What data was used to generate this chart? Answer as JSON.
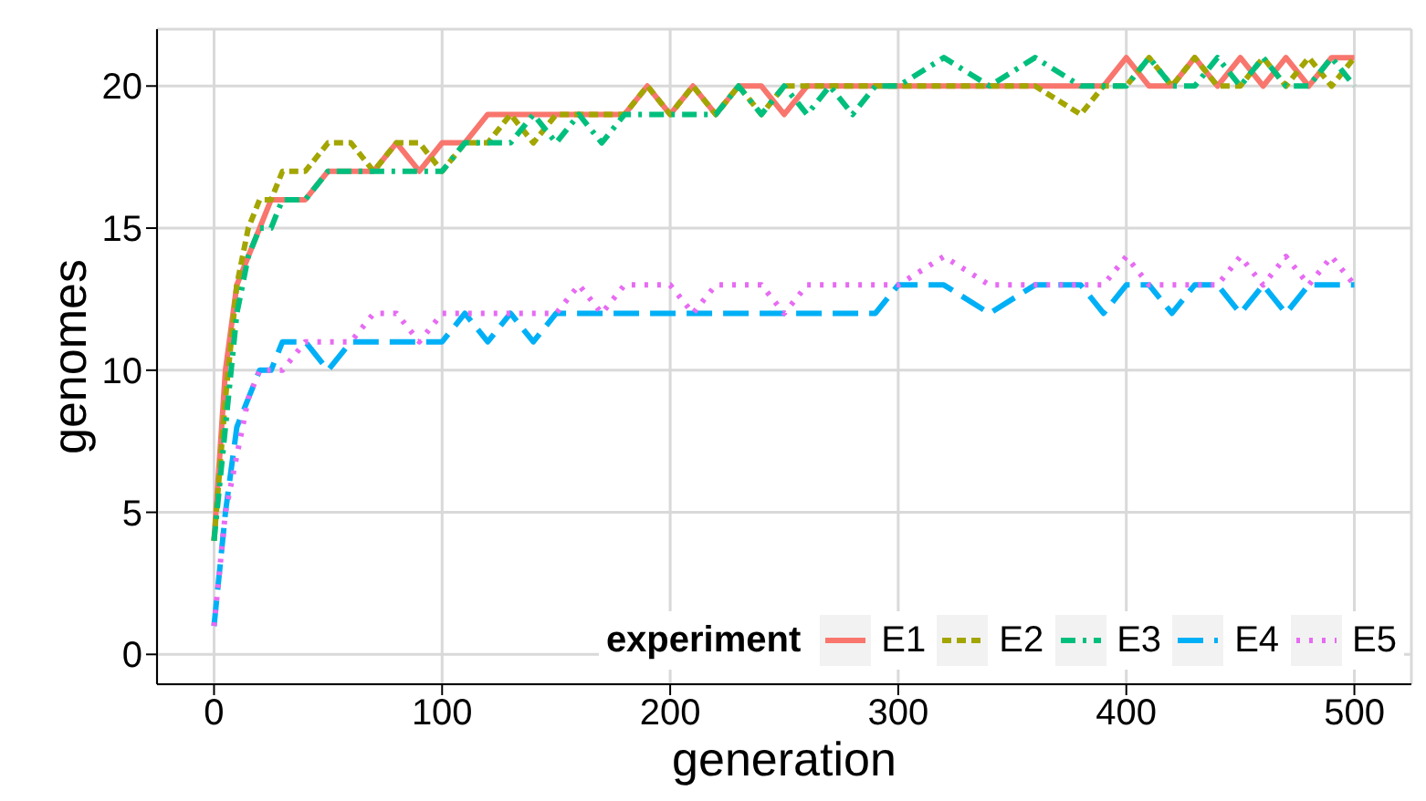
{
  "chart_data": {
    "type": "line",
    "xlabel": "generation",
    "ylabel": "genomes",
    "legend_title": "experiment",
    "legend": "bottom right",
    "grid": true,
    "marker": "none",
    "xlim": [
      -25,
      525
    ],
    "xticks": [
      0,
      100,
      200,
      300,
      400,
      500
    ],
    "ylim": [
      -1.05,
      22
    ],
    "yticks": [
      0,
      5,
      10,
      15,
      20
    ],
    "x": [
      0,
      5,
      10,
      15,
      20,
      25,
      30,
      40,
      50,
      60,
      70,
      80,
      90,
      100,
      110,
      120,
      130,
      140,
      150,
      160,
      170,
      180,
      190,
      200,
      210,
      220,
      230,
      240,
      250,
      260,
      270,
      280,
      290,
      300,
      320,
      340,
      360,
      380,
      390,
      400,
      410,
      420,
      430,
      440,
      450,
      460,
      470,
      480,
      490,
      500
    ],
    "series": [
      {
        "name": "E1",
        "color": "#f8766d",
        "line_style": "solid",
        "values": [
          4,
          10,
          13,
          14,
          15,
          16,
          16,
          16,
          17,
          17,
          17,
          18,
          17,
          18,
          18,
          19,
          19,
          19,
          19,
          19,
          19,
          19,
          20,
          19,
          20,
          19,
          20,
          20,
          19,
          20,
          20,
          20,
          20,
          20,
          20,
          20,
          20,
          20,
          20,
          21,
          20,
          20,
          21,
          20,
          21,
          20,
          21,
          20,
          21,
          21
        ]
      },
      {
        "name": "E2",
        "color": "#a3a500",
        "line_style": "dashed",
        "values": [
          4,
          9,
          13,
          15,
          16,
          16,
          17,
          17,
          18,
          18,
          17,
          18,
          18,
          17,
          18,
          18,
          19,
          18,
          19,
          19,
          19,
          19,
          20,
          19,
          20,
          19,
          20,
          19,
          20,
          20,
          20,
          20,
          20,
          20,
          20,
          20,
          20,
          19,
          20,
          20,
          21,
          20,
          21,
          20,
          20,
          21,
          20,
          21,
          20,
          21
        ]
      },
      {
        "name": "E3",
        "color": "#00bf7d",
        "line_style": "dashdot",
        "values": [
          4,
          8,
          12,
          14,
          15,
          15,
          16,
          16,
          17,
          17,
          17,
          17,
          17,
          17,
          18,
          18,
          18,
          19,
          18,
          19,
          18,
          19,
          19,
          19,
          19,
          19,
          20,
          19,
          20,
          19,
          20,
          19,
          20,
          20,
          21,
          20,
          21,
          20,
          20,
          20,
          21,
          20,
          20,
          21,
          20,
          21,
          20,
          20,
          21,
          20
        ]
      },
      {
        "name": "E4",
        "color": "#00b0f6",
        "line_style": "longdash",
        "values": [
          1,
          5,
          8,
          9,
          10,
          10,
          11,
          11,
          10,
          11,
          11,
          11,
          11,
          11,
          12,
          11,
          12,
          11,
          12,
          12,
          12,
          12,
          12,
          12,
          12,
          12,
          12,
          12,
          12,
          12,
          12,
          12,
          12,
          13,
          13,
          12,
          13,
          13,
          12,
          13,
          13,
          12,
          13,
          13,
          12,
          13,
          12,
          13,
          13,
          13
        ]
      },
      {
        "name": "E5",
        "color": "#e76bf3",
        "line_style": "dotted",
        "values": [
          1,
          5,
          7,
          9,
          10,
          10,
          10,
          11,
          11,
          11,
          12,
          12,
          11,
          12,
          12,
          12,
          12,
          12,
          12,
          13,
          12,
          13,
          13,
          13,
          12,
          13,
          13,
          13,
          12,
          13,
          13,
          13,
          13,
          13,
          14,
          13,
          13,
          13,
          13,
          14,
          13,
          13,
          13,
          13,
          14,
          13,
          14,
          13,
          14,
          13
        ]
      }
    ]
  }
}
